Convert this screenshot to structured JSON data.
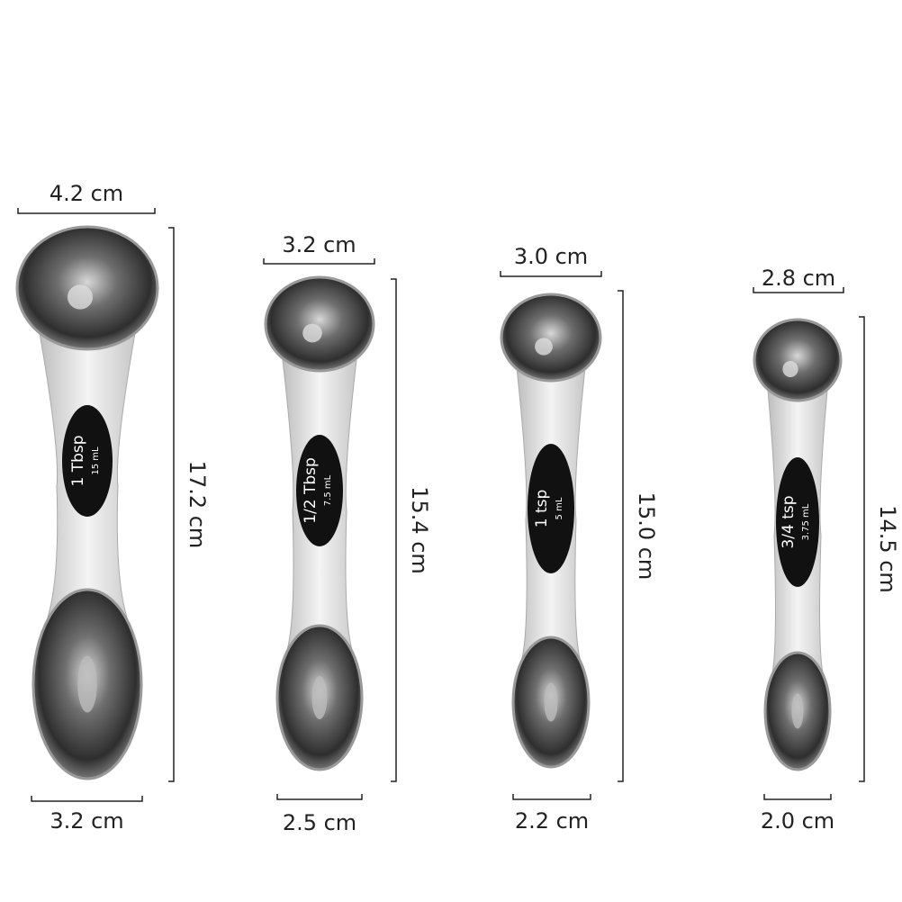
{
  "spoons": [
    {
      "top_width": "4.2 cm",
      "length": "17.2 cm",
      "bottom_width": "3.2 cm",
      "label": "1 Tbsp",
      "volume": "15 mL"
    },
    {
      "top_width": "3.2 cm",
      "length": "15.4 cm",
      "bottom_width": "2.5 cm",
      "label": "1/2 Tbsp",
      "volume": "7.5 mL"
    },
    {
      "top_width": "3.0 cm",
      "length": "15.0 cm",
      "bottom_width": "2.2 cm",
      "label": "1 tsp",
      "volume": "5 mL"
    },
    {
      "top_width": "2.8 cm",
      "length": "14.5 cm",
      "bottom_width": "2.0 cm",
      "label": "3/4 tsp",
      "volume": "3.75 mL"
    }
  ]
}
